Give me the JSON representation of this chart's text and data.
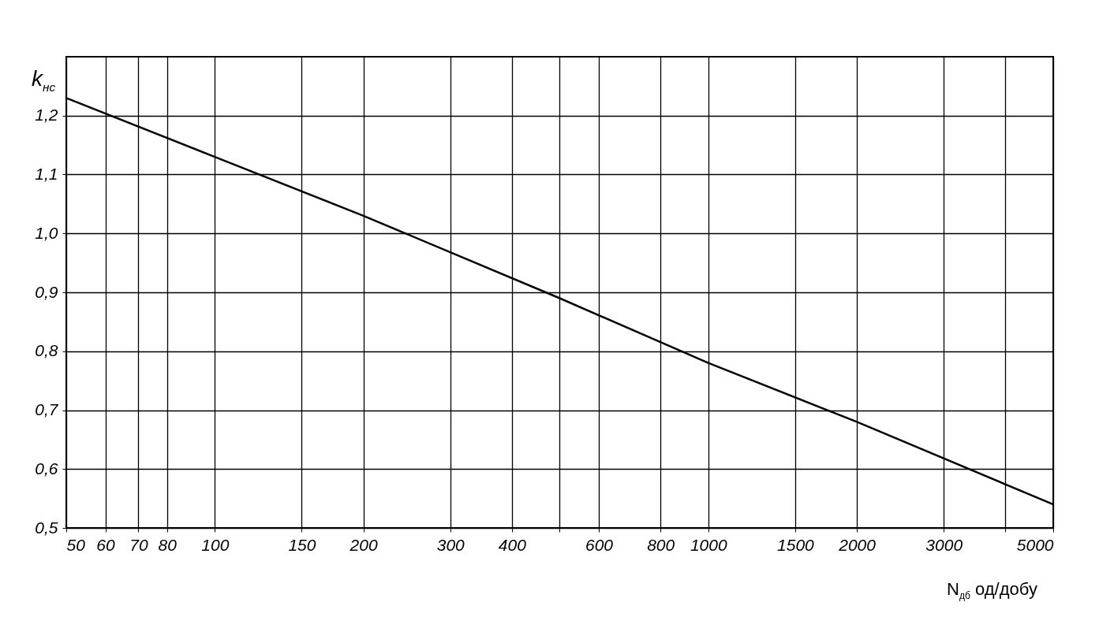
{
  "chart_data": {
    "type": "line",
    "ylabel": "k$_{нс}$",
    "xlabel": "N$_{дб}$ од/добу",
    "log": "x",
    "grid": true,
    "marker": "none",
    "line_style": "solid",
    "x": [
      50,
      100,
      200,
      500,
      1000,
      2000,
      5000
    ],
    "series": [
      {
        "color": "#000000",
        "values": [
          1.23,
          1.13,
          1.03,
          0.89,
          0.78,
          0.68,
          0.54
        ]
      }
    ],
    "xlim": [
      50,
      5000
    ],
    "xticks": [
      50,
      60,
      70,
      80,
      100,
      150,
      200,
      300,
      400,
      {
        "value": 500,
        "label": null
      },
      600,
      800,
      1000,
      1500,
      2000,
      3000,
      {
        "value": 4000,
        "label": null
      },
      5000
    ],
    "ylim": [
      0.5,
      1.3
    ],
    "yticks": [
      {
        "value": 0.5,
        "label": "0,5"
      },
      {
        "value": 0.6,
        "label": "0,6"
      },
      {
        "value": 0.7,
        "label": "0,7"
      },
      {
        "value": 0.8,
        "label": "0,8"
      },
      {
        "value": 0.9,
        "label": "0,9"
      },
      {
        "value": 1.0,
        "label": "1,0"
      },
      {
        "value": 1.1,
        "label": "1,1"
      },
      {
        "value": 1.2,
        "label": "1,2"
      }
    ]
  }
}
